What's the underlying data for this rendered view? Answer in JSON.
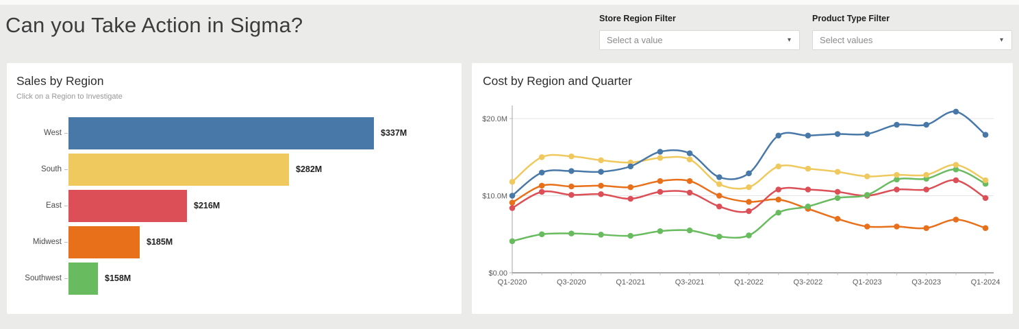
{
  "page": {
    "title": "Can you Take Action in Sigma?"
  },
  "filters": [
    {
      "label": "Store Region Filter",
      "value": "Select a value",
      "chevron_icon": "chevron-down"
    },
    {
      "label": "Product Type Filter",
      "value": "Select values",
      "chevron_icon": "chevron-down"
    }
  ],
  "colors": {
    "page_background": "#ebebe9",
    "card_background": "#ffffff",
    "west_blue": "#4878a8",
    "south_yellow": "#f0c95e",
    "east_red": "#dc4f56",
    "midwest_orange": "#e8701a",
    "southwest_green": "#69bb5f",
    "gridline": "#e4e4e4",
    "axis_line": "#8c8c8c"
  },
  "chart_data": [
    {
      "type": "bar",
      "orientation": "horizontal",
      "title": "Sales by Region",
      "subtitle": "Click on a Region to Investigate",
      "categories": [
        "West",
        "South",
        "East",
        "Midwest",
        "Southwest"
      ],
      "values": [
        337,
        282,
        216,
        185,
        158
      ],
      "value_labels": [
        "$337M",
        "$282M",
        "$216M",
        "$185M",
        "$158M"
      ],
      "bar_colors": [
        "#4878a8",
        "#f0c95e",
        "#dc4f56",
        "#e8701a",
        "#69bb5f"
      ],
      "value_axis_range": [
        139,
        337
      ],
      "grid": false,
      "legend": "none"
    },
    {
      "type": "line",
      "title": "Cost by Region and Quarter",
      "x": [
        "Q1-2020",
        "Q2-2020",
        "Q3-2020",
        "Q4-2020",
        "Q1-2021",
        "Q2-2021",
        "Q3-2021",
        "Q4-2021",
        "Q1-2022",
        "Q2-2022",
        "Q3-2022",
        "Q4-2022",
        "Q1-2023",
        "Q2-2023",
        "Q3-2023",
        "Q4-2023",
        "Q1-2024"
      ],
      "x_ticks_shown": [
        "Q1-2020",
        "Q3-2020",
        "Q1-2021",
        "Q3-2021",
        "Q1-2022",
        "Q3-2022",
        "Q1-2023",
        "Q3-2023",
        "Q1-2024"
      ],
      "y_ticks": [
        {
          "label": "$0.00",
          "value": 0
        },
        {
          "label": "$10.0M",
          "value": 10
        },
        {
          "label": "$20.0M",
          "value": 20
        }
      ],
      "ylim": [
        0,
        21.8
      ],
      "unit": "M$",
      "grid": true,
      "legend": "none",
      "series": [
        {
          "name": "West",
          "color": "#4878a8",
          "values": [
            10.0,
            13.0,
            13.2,
            13.1,
            13.8,
            15.7,
            15.5,
            12.4,
            12.9,
            17.8,
            17.8,
            18.0,
            18.0,
            19.2,
            19.2,
            20.9,
            17.9
          ]
        },
        {
          "name": "South",
          "color": "#f0c95e",
          "values": [
            11.8,
            15.0,
            15.1,
            14.6,
            14.3,
            14.9,
            14.7,
            11.5,
            11.1,
            13.8,
            13.5,
            13.1,
            12.5,
            12.7,
            12.7,
            14.0,
            12.0
          ]
        },
        {
          "name": "East",
          "color": "#dc4f56",
          "values": [
            8.4,
            10.5,
            10.1,
            10.2,
            9.6,
            10.5,
            10.4,
            8.6,
            8.0,
            10.8,
            10.8,
            10.5,
            10.0,
            10.8,
            10.8,
            12.0,
            9.7
          ]
        },
        {
          "name": "Midwest",
          "color": "#e8701a",
          "values": [
            9.1,
            11.3,
            11.2,
            11.3,
            11.1,
            11.9,
            11.9,
            10.0,
            9.2,
            9.5,
            8.3,
            7.0,
            6.0,
            6.0,
            5.8,
            6.9,
            5.8
          ]
        },
        {
          "name": "Southwest",
          "color": "#69bb5f",
          "values": [
            4.1,
            5.0,
            5.1,
            4.95,
            4.8,
            5.4,
            5.5,
            4.7,
            4.85,
            7.8,
            8.6,
            9.7,
            10.1,
            12.1,
            12.2,
            13.4,
            11.55
          ]
        }
      ]
    }
  ]
}
